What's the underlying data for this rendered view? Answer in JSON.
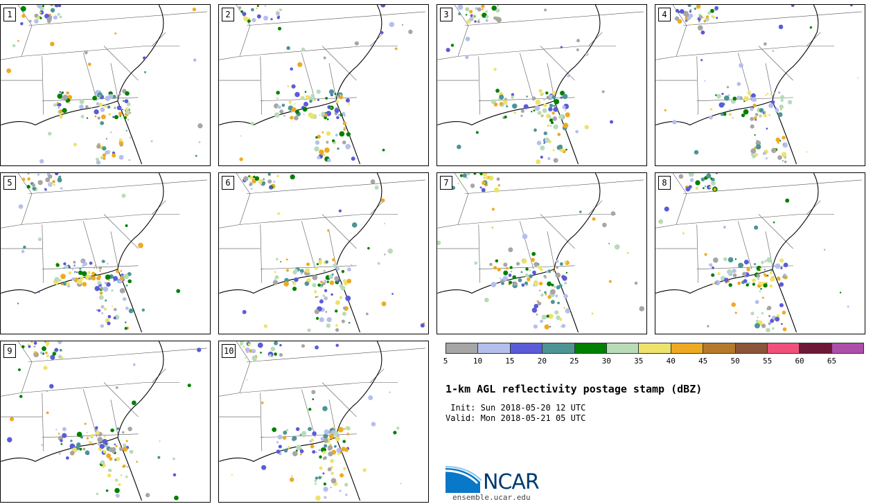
{
  "panels": [
    {
      "label": "1"
    },
    {
      "label": "2"
    },
    {
      "label": "3"
    },
    {
      "label": "4"
    },
    {
      "label": "5"
    },
    {
      "label": "6"
    },
    {
      "label": "7"
    },
    {
      "label": "8"
    },
    {
      "label": "9"
    },
    {
      "label": "10"
    }
  ],
  "colorbar": {
    "colors": [
      "#a6a6a6",
      "#b5bfec",
      "#5b5bd9",
      "#4d9595",
      "#008000",
      "#b8dbb8",
      "#ede36a",
      "#eeaa22",
      "#b5792b",
      "#8a5538",
      "#f0507a",
      "#6e1838",
      "#ad4ea8"
    ],
    "labels": [
      "5",
      "10",
      "15",
      "20",
      "25",
      "30",
      "35",
      "40",
      "45",
      "50",
      "55",
      "60",
      "65"
    ]
  },
  "title": "1-km AGL reflectivity postage stamp (dBZ)",
  "init": " Init: Sun 2018-05-20 12 UTC",
  "valid": "Valid: Mon 2018-05-21 05 UTC",
  "logo": {
    "text": "NCAR",
    "url": "ensemble.ucar.edu"
  }
}
